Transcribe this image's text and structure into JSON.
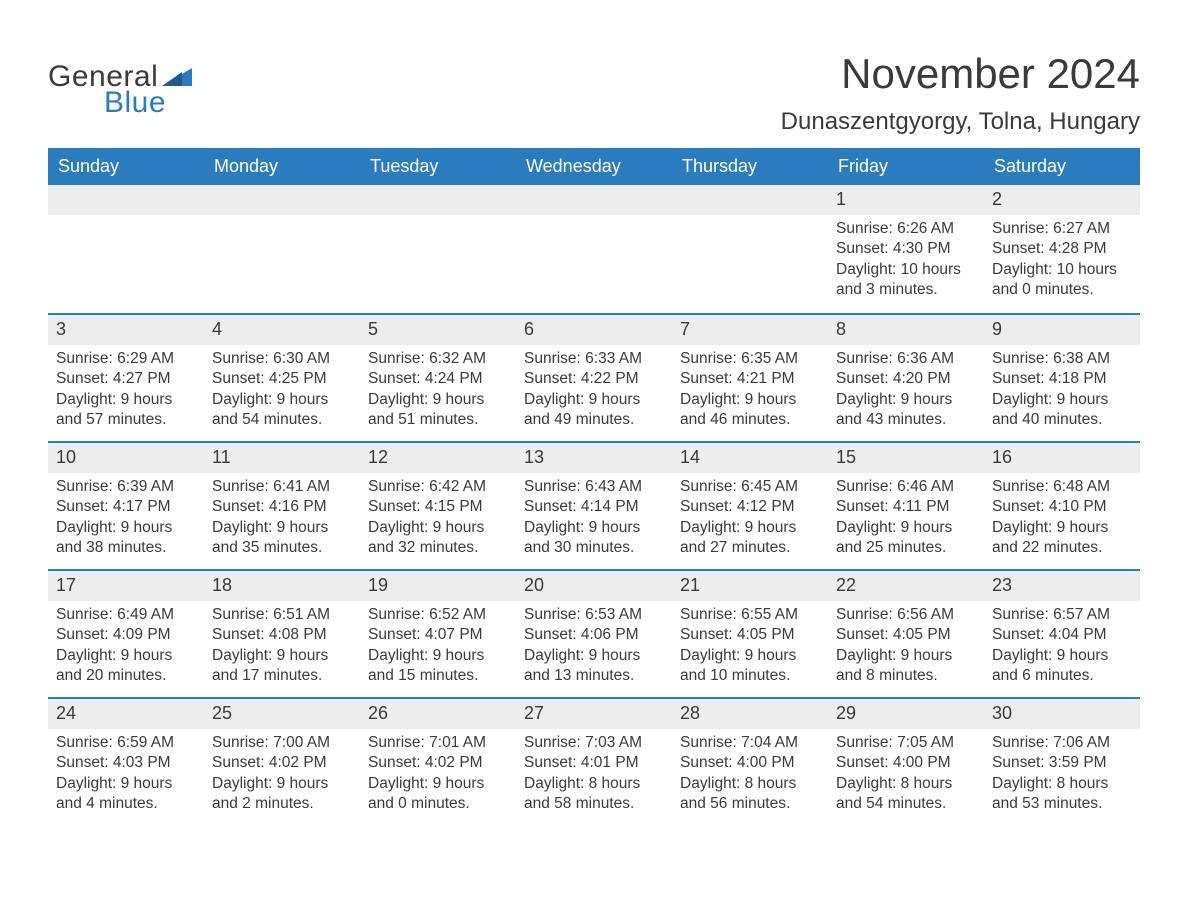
{
  "logo": {
    "text1": "General",
    "text2": "Blue",
    "flag_color": "#2b7bbf"
  },
  "title": "November 2024",
  "location": "Dunaszentgyorgy, Tolna, Hungary",
  "colors": {
    "header_bg": "#2b7bbf",
    "header_text": "#ffffff",
    "row_divider": "#2b7bbf",
    "daynum_bg": "#ededed",
    "body_text": "#3a3a3a",
    "page_bg": "#ffffff"
  },
  "day_headers": [
    "Sunday",
    "Monday",
    "Tuesday",
    "Wednesday",
    "Thursday",
    "Friday",
    "Saturday"
  ],
  "weeks": [
    [
      null,
      null,
      null,
      null,
      null,
      {
        "n": "1",
        "sunrise": "6:26 AM",
        "sunset": "4:30 PM",
        "daylight": "10 hours and 3 minutes."
      },
      {
        "n": "2",
        "sunrise": "6:27 AM",
        "sunset": "4:28 PM",
        "daylight": "10 hours and 0 minutes."
      }
    ],
    [
      {
        "n": "3",
        "sunrise": "6:29 AM",
        "sunset": "4:27 PM",
        "daylight": "9 hours and 57 minutes."
      },
      {
        "n": "4",
        "sunrise": "6:30 AM",
        "sunset": "4:25 PM",
        "daylight": "9 hours and 54 minutes."
      },
      {
        "n": "5",
        "sunrise": "6:32 AM",
        "sunset": "4:24 PM",
        "daylight": "9 hours and 51 minutes."
      },
      {
        "n": "6",
        "sunrise": "6:33 AM",
        "sunset": "4:22 PM",
        "daylight": "9 hours and 49 minutes."
      },
      {
        "n": "7",
        "sunrise": "6:35 AM",
        "sunset": "4:21 PM",
        "daylight": "9 hours and 46 minutes."
      },
      {
        "n": "8",
        "sunrise": "6:36 AM",
        "sunset": "4:20 PM",
        "daylight": "9 hours and 43 minutes."
      },
      {
        "n": "9",
        "sunrise": "6:38 AM",
        "sunset": "4:18 PM",
        "daylight": "9 hours and 40 minutes."
      }
    ],
    [
      {
        "n": "10",
        "sunrise": "6:39 AM",
        "sunset": "4:17 PM",
        "daylight": "9 hours and 38 minutes."
      },
      {
        "n": "11",
        "sunrise": "6:41 AM",
        "sunset": "4:16 PM",
        "daylight": "9 hours and 35 minutes."
      },
      {
        "n": "12",
        "sunrise": "6:42 AM",
        "sunset": "4:15 PM",
        "daylight": "9 hours and 32 minutes."
      },
      {
        "n": "13",
        "sunrise": "6:43 AM",
        "sunset": "4:14 PM",
        "daylight": "9 hours and 30 minutes."
      },
      {
        "n": "14",
        "sunrise": "6:45 AM",
        "sunset": "4:12 PM",
        "daylight": "9 hours and 27 minutes."
      },
      {
        "n": "15",
        "sunrise": "6:46 AM",
        "sunset": "4:11 PM",
        "daylight": "9 hours and 25 minutes."
      },
      {
        "n": "16",
        "sunrise": "6:48 AM",
        "sunset": "4:10 PM",
        "daylight": "9 hours and 22 minutes."
      }
    ],
    [
      {
        "n": "17",
        "sunrise": "6:49 AM",
        "sunset": "4:09 PM",
        "daylight": "9 hours and 20 minutes."
      },
      {
        "n": "18",
        "sunrise": "6:51 AM",
        "sunset": "4:08 PM",
        "daylight": "9 hours and 17 minutes."
      },
      {
        "n": "19",
        "sunrise": "6:52 AM",
        "sunset": "4:07 PM",
        "daylight": "9 hours and 15 minutes."
      },
      {
        "n": "20",
        "sunrise": "6:53 AM",
        "sunset": "4:06 PM",
        "daylight": "9 hours and 13 minutes."
      },
      {
        "n": "21",
        "sunrise": "6:55 AM",
        "sunset": "4:05 PM",
        "daylight": "9 hours and 10 minutes."
      },
      {
        "n": "22",
        "sunrise": "6:56 AM",
        "sunset": "4:05 PM",
        "daylight": "9 hours and 8 minutes."
      },
      {
        "n": "23",
        "sunrise": "6:57 AM",
        "sunset": "4:04 PM",
        "daylight": "9 hours and 6 minutes."
      }
    ],
    [
      {
        "n": "24",
        "sunrise": "6:59 AM",
        "sunset": "4:03 PM",
        "daylight": "9 hours and 4 minutes."
      },
      {
        "n": "25",
        "sunrise": "7:00 AM",
        "sunset": "4:02 PM",
        "daylight": "9 hours and 2 minutes."
      },
      {
        "n": "26",
        "sunrise": "7:01 AM",
        "sunset": "4:02 PM",
        "daylight": "9 hours and 0 minutes."
      },
      {
        "n": "27",
        "sunrise": "7:03 AM",
        "sunset": "4:01 PM",
        "daylight": "8 hours and 58 minutes."
      },
      {
        "n": "28",
        "sunrise": "7:04 AM",
        "sunset": "4:00 PM",
        "daylight": "8 hours and 56 minutes."
      },
      {
        "n": "29",
        "sunrise": "7:05 AM",
        "sunset": "4:00 PM",
        "daylight": "8 hours and 54 minutes."
      },
      {
        "n": "30",
        "sunrise": "7:06 AM",
        "sunset": "3:59 PM",
        "daylight": "8 hours and 53 minutes."
      }
    ]
  ],
  "labels": {
    "sunrise": "Sunrise:",
    "sunset": "Sunset:",
    "daylight": "Daylight:"
  }
}
